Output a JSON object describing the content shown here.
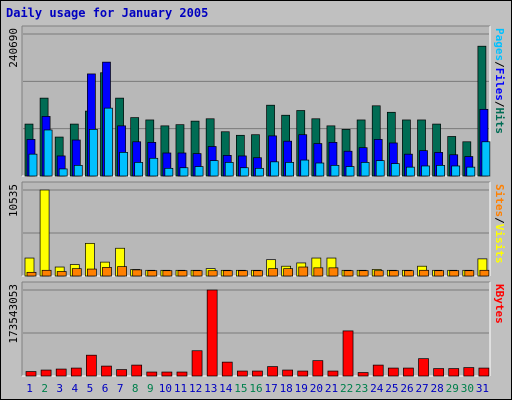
{
  "title": "Daily usage for January 2005",
  "colors": {
    "background": "#C0C0C0",
    "panel": "#B8B8B8",
    "grid": "#7A7A7A",
    "title": "#0000C0",
    "hits": "#006C54",
    "files": "#0000FF",
    "pages": "#00C0FF",
    "visits": "#FFFF00",
    "sites": "#FF8000",
    "kbytes": "#FF0000",
    "day_weekday": "#0000C0",
    "day_weekend": "#00804C"
  },
  "chart_data": [
    {
      "type": "bar",
      "panel": "top",
      "ymax_label": "240690",
      "ylim": [
        0,
        240690
      ],
      "categories": [
        "1",
        "2",
        "3",
        "4",
        "5",
        "6",
        "7",
        "8",
        "9",
        "10",
        "11",
        "12",
        "13",
        "14",
        "15",
        "16",
        "17",
        "18",
        "19",
        "20",
        "21",
        "22",
        "23",
        "24",
        "25",
        "26",
        "27",
        "28",
        "29",
        "30",
        "31"
      ],
      "legend": [
        {
          "text": "Hits",
          "color": "#006C54"
        },
        {
          "text": "Files",
          "color": "#0000FF"
        },
        {
          "text": "Pages",
          "color": "#00C0FF"
        }
      ],
      "series": [
        {
          "name": "Hits",
          "values": [
            88000,
            132000,
            66000,
            88000,
            110000,
            175000,
            132000,
            99000,
            95000,
            85000,
            87000,
            93000,
            97000,
            75000,
            69000,
            70000,
            120000,
            103000,
            111000,
            97000,
            85000,
            79000,
            95000,
            119000,
            108000,
            95000,
            95000,
            88000,
            67000,
            58000,
            220000
          ]
        },
        {
          "name": "Files",
          "values": [
            62000,
            101000,
            34000,
            61000,
            173000,
            193000,
            85000,
            58000,
            57000,
            39000,
            39000,
            38000,
            50000,
            35000,
            34000,
            31000,
            68000,
            59000,
            70000,
            55000,
            57000,
            42000,
            48000,
            62000,
            56000,
            37000,
            43000,
            40000,
            36000,
            33000,
            113000
          ]
        },
        {
          "name": "Pages",
          "values": [
            37000,
            78000,
            12000,
            18000,
            79000,
            115000,
            40000,
            23000,
            30000,
            13000,
            14000,
            16000,
            26000,
            23000,
            14000,
            13000,
            24000,
            23000,
            27000,
            22000,
            18000,
            16000,
            23000,
            26000,
            21000,
            15000,
            17000,
            18000,
            17000,
            15000,
            58000
          ]
        }
      ]
    },
    {
      "type": "bar",
      "panel": "middle",
      "ymax_label": "10535",
      "ylim": [
        0,
        10535
      ],
      "categories": [
        "1",
        "2",
        "3",
        "4",
        "5",
        "6",
        "7",
        "8",
        "9",
        "10",
        "11",
        "12",
        "13",
        "14",
        "15",
        "16",
        "17",
        "18",
        "19",
        "20",
        "21",
        "22",
        "23",
        "24",
        "25",
        "26",
        "27",
        "28",
        "29",
        "30",
        "31"
      ],
      "legend": [
        {
          "text": "Visits",
          "color": "#FFFF00"
        },
        {
          "text": "Sites",
          "color": "#FF8000"
        }
      ],
      "series": [
        {
          "name": "Visits",
          "values": [
            2200,
            10535,
            1100,
            1400,
            4000,
            1700,
            3400,
            800,
            700,
            700,
            700,
            700,
            900,
            700,
            700,
            700,
            2000,
            1200,
            1600,
            2200,
            2200,
            700,
            700,
            800,
            700,
            700,
            1200,
            700,
            700,
            700,
            2100
          ]
        },
        {
          "name": "Sites",
          "values": [
            450,
            700,
            550,
            900,
            850,
            1050,
            1150,
            750,
            650,
            650,
            650,
            650,
            650,
            650,
            650,
            650,
            900,
            900,
            1100,
            1000,
            1000,
            650,
            650,
            650,
            650,
            650,
            700,
            650,
            650,
            650,
            700
          ]
        }
      ]
    },
    {
      "type": "bar",
      "panel": "bottom",
      "ymax_label": "173543053",
      "ylim": [
        0,
        173543053
      ],
      "categories": [
        "1",
        "2",
        "3",
        "4",
        "5",
        "6",
        "7",
        "8",
        "9",
        "10",
        "11",
        "12",
        "13",
        "14",
        "15",
        "16",
        "17",
        "18",
        "19",
        "20",
        "21",
        "22",
        "23",
        "24",
        "25",
        "26",
        "27",
        "28",
        "29",
        "30",
        "31"
      ],
      "legend": [
        {
          "text": "KBytes",
          "color": "#FF0000"
        }
      ],
      "series": [
        {
          "name": "KBytes",
          "values": [
            9000000,
            12000000,
            14000000,
            16000000,
            42000000,
            20000000,
            13000000,
            22000000,
            8000000,
            8000000,
            8000000,
            51000000,
            173543053,
            28000000,
            10000000,
            10000000,
            19000000,
            12000000,
            10000000,
            31000000,
            10000000,
            91000000,
            7000000,
            22000000,
            16000000,
            16000000,
            35000000,
            15000000,
            15000000,
            17000000,
            16000000
          ]
        }
      ]
    }
  ],
  "weekend_days": [
    "2",
    "8",
    "9",
    "15",
    "16",
    "22",
    "23",
    "29",
    "30"
  ]
}
